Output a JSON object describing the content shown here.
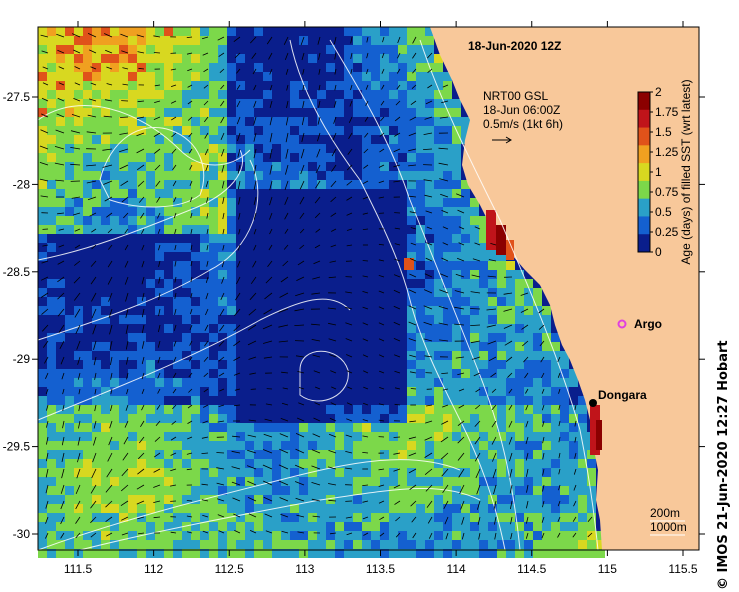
{
  "title": "18-Jun-2020 12Z",
  "velocity_legend": {
    "line1": "NRT00 GSL",
    "line2": "18-Jun 06:00Z",
    "line3": "0.5m/s (1kt 6h)"
  },
  "colorbar": {
    "label": "Age (days) of filled SST (wrt latest)",
    "ticks": [
      "2",
      "1.75",
      "1.5",
      "1.25",
      "1",
      "0.75",
      "0.5",
      "0.25",
      "0"
    ],
    "colors": [
      "#8b0000",
      "#c0141a",
      "#e0521a",
      "#f0a020",
      "#d8d820",
      "#7cd84a",
      "#2aa0c8",
      "#1460d0",
      "#0a1e8c"
    ]
  },
  "places": {
    "argo": "Argo",
    "dongara": "Dongara"
  },
  "depth_legend": {
    "shallow": "200m",
    "deep": "1000m"
  },
  "credit": "© IMOS 21-Jun-2020 12:27 Hobart",
  "axes": {
    "x_ticks": [
      "111.5",
      "112",
      "112.5",
      "113",
      "113.5",
      "114",
      "114.5",
      "115",
      "115.5"
    ],
    "y_ticks": [
      "-27.5",
      "-28",
      "-28.5",
      "-29",
      "-29.5",
      "-30"
    ]
  },
  "colors": {
    "land": "#f8c89a",
    "ocean_deep": "#0a1e8c",
    "argo": "#e040e0"
  }
}
